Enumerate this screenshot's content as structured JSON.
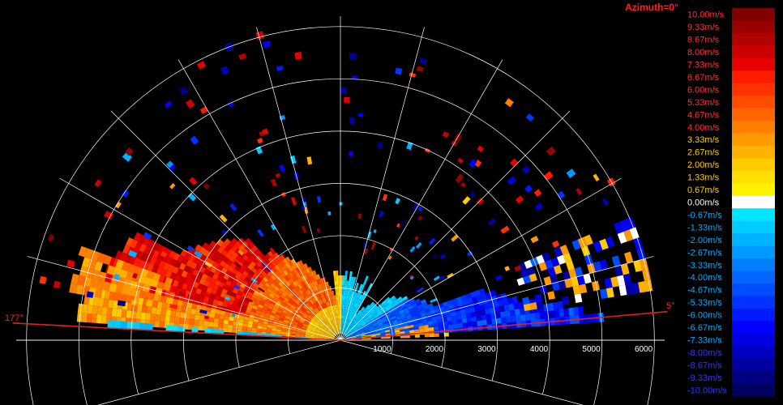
{
  "chart_data": {
    "type": "heatmap",
    "title": "Azimuth=0°",
    "title_color": "#ff2020",
    "subtype": "radar-rhi-velocity",
    "range_ticks": [
      1000,
      2000,
      3000,
      4000,
      5000,
      6000
    ],
    "range_max": 6000,
    "elevation_labels": {
      "left": "177°",
      "right": "5°"
    },
    "elevation_lines_deg": {
      "left": 177,
      "right": 5
    },
    "elevation_line_color": "#e02020",
    "grid_spokes_deg": [
      -15,
      0,
      15,
      30,
      45,
      60,
      75,
      90,
      105,
      120,
      135,
      150,
      165,
      180,
      195
    ],
    "grid": true,
    "colorbar": {
      "labels": [
        "10.00m/s",
        "9.33m/s",
        "8.67m/s",
        "8.00m/s",
        "7.33m/s",
        "6.67m/s",
        "6.00m/s",
        "5.33m/s",
        "4.67m/s",
        "4.00m/s",
        "3.33m/s",
        "2.67m/s",
        "2.00m/s",
        "1.33m/s",
        "0.67m/s",
        "0.00m/s",
        "-0.67m/s",
        "-1.33m/s",
        "-2.00m/s",
        "-2.67m/s",
        "-3.33m/s",
        "-4.00m/s",
        "-4.67m/s",
        "-5.33m/s",
        "-6.00m/s",
        "-6.67m/s",
        "-7.33m/s",
        "-8.00m/s",
        "-8.67m/s",
        "-9.33m/s",
        "-10.00m/s"
      ],
      "colors": [
        "#800000",
        "#990000",
        "#b30000",
        "#cc0000",
        "#e60000",
        "#ff1a00",
        "#ff3300",
        "#ff4d00",
        "#ff6600",
        "#ff8000",
        "#ff9900",
        "#ffb300",
        "#ffcc00",
        "#ffe000",
        "#fff200",
        "#ffffff",
        "#00e5ff",
        "#00ccff",
        "#00b3ff",
        "#0099ff",
        "#0080ff",
        "#0066ff",
        "#004dff",
        "#0033ff",
        "#001aff",
        "#0000ff",
        "#0000e0",
        "#0000c0",
        "#0000a0",
        "#000080",
        "#000060"
      ],
      "label_colors_pos": "#ff3030",
      "label_colors_mid": "#ffcc00",
      "label_colors_neg": "#00aaff",
      "label_colors_low": "#3333ff"
    }
  }
}
